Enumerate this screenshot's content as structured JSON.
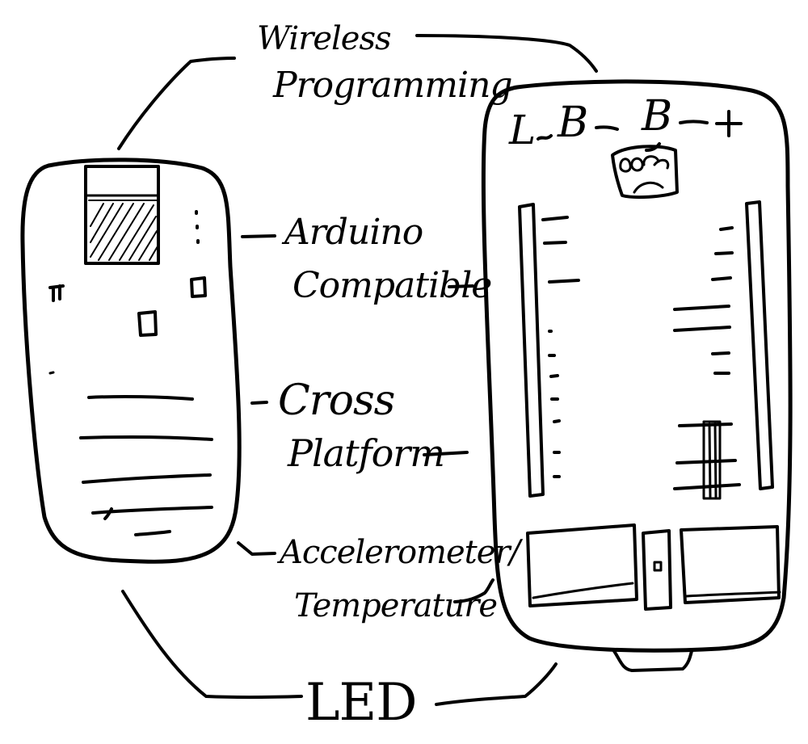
{
  "labels": {
    "wireless_1": "Wireless",
    "wireless_2": "Programming",
    "arduino_1": "Arduino",
    "arduino_2": "Compatible",
    "cross_1": "Cross",
    "cross_2": "Platform",
    "accel_1": "Accelerometer/",
    "accel_2": "Temperature",
    "led": "LED"
  },
  "board_header": {
    "pin_l": "L",
    "pin_b1": "B",
    "pin_b2": "B",
    "pin_plus": "+"
  },
  "colors": {
    "ink": "#000000",
    "paper": "#ffffff"
  }
}
